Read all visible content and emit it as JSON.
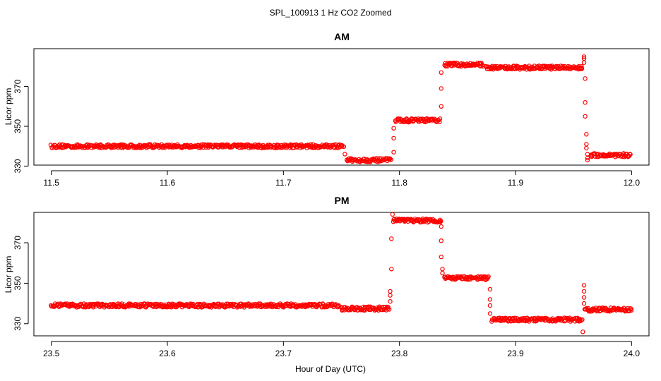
{
  "figure": {
    "title": "SPL_100913  1 Hz CO2 Zoomed",
    "xlabel": "Hour of Day (UTC)"
  },
  "colors": {
    "points": "#ff0000",
    "axes": "#000000"
  },
  "chart_data": [
    {
      "type": "scatter",
      "title": "AM",
      "ylabel": "Licor ppm",
      "xlim": [
        11.485,
        12.015
      ],
      "ylim": [
        330.5,
        389
      ],
      "xticks": [
        11.5,
        11.6,
        11.7,
        11.8,
        11.9,
        12.0
      ],
      "xtick_labels": [
        "11.5",
        "11.6",
        "11.7",
        "11.8",
        "11.9",
        "12.0"
      ],
      "yticks": [
        330,
        350,
        370
      ],
      "ytick_labels": [
        "330",
        "350",
        "370"
      ],
      "segments": [
        {
          "x_start": 11.5,
          "x_end": 11.752,
          "y": 340
        },
        {
          "x_start": 11.755,
          "x_end": 11.793,
          "y": 333
        },
        {
          "x_start": 11.797,
          "x_end": 11.835,
          "y": 353
        },
        {
          "x_start": 11.839,
          "x_end": 11.873,
          "y": 381
        },
        {
          "x_start": 11.875,
          "x_end": 11.958,
          "y": 379.5
        },
        {
          "x_start": 11.965,
          "x_end": 12.0,
          "y": 335.5
        }
      ],
      "transitions": [
        {
          "x": 11.753,
          "y": [
            336
          ]
        },
        {
          "x": 11.795,
          "y": [
            337,
            344,
            349
          ]
        },
        {
          "x": 11.836,
          "y": [
            360,
            369,
            377
          ]
        },
        {
          "x": 11.959,
          "y": [
            385,
            384,
            382
          ]
        },
        {
          "x": 11.96,
          "y": [
            374,
            362,
            355
          ]
        },
        {
          "x": 11.961,
          "y": [
            346,
            341,
            339
          ]
        },
        {
          "x": 11.962,
          "y": [
            336,
            334,
            333
          ]
        }
      ]
    },
    {
      "type": "scatter",
      "title": "PM",
      "ylabel": "Licor ppm",
      "xlim": [
        23.485,
        24.015
      ],
      "ylim": [
        324,
        385
      ],
      "xticks": [
        23.5,
        23.6,
        23.7,
        23.8,
        23.9,
        24.0
      ],
      "xtick_labels": [
        "23.5",
        "23.6",
        "23.7",
        "23.8",
        "23.9",
        "24.0"
      ],
      "yticks": [
        330,
        350,
        370
      ],
      "ytick_labels": [
        "330",
        "350",
        "370"
      ],
      "segments": [
        {
          "x_start": 23.5,
          "x_end": 23.748,
          "y": 339
        },
        {
          "x_start": 23.75,
          "x_end": 23.791,
          "y": 337.5
        },
        {
          "x_start": 23.795,
          "x_end": 23.836,
          "y": 381
        },
        {
          "x_start": 23.839,
          "x_end": 23.877,
          "y": 352.5
        },
        {
          "x_start": 23.88,
          "x_end": 23.958,
          "y": 332
        },
        {
          "x_start": 23.96,
          "x_end": 24.0,
          "y": 337
        }
      ],
      "transitions": [
        {
          "x": 23.792,
          "y": [
            341,
            344,
            346
          ]
        },
        {
          "x": 23.793,
          "y": [
            357,
            372
          ]
        },
        {
          "x": 23.794,
          "y": [
            384
          ]
        },
        {
          "x": 23.836,
          "y": [
            378,
            371,
            363
          ]
        },
        {
          "x": 23.837,
          "y": [
            357,
            355
          ]
        },
        {
          "x": 23.878,
          "y": [
            347,
            342,
            339,
            335
          ]
        },
        {
          "x": 23.958,
          "y": [
            326
          ]
        },
        {
          "x": 23.959,
          "y": [
            349,
            346,
            343,
            340
          ]
        }
      ]
    }
  ]
}
